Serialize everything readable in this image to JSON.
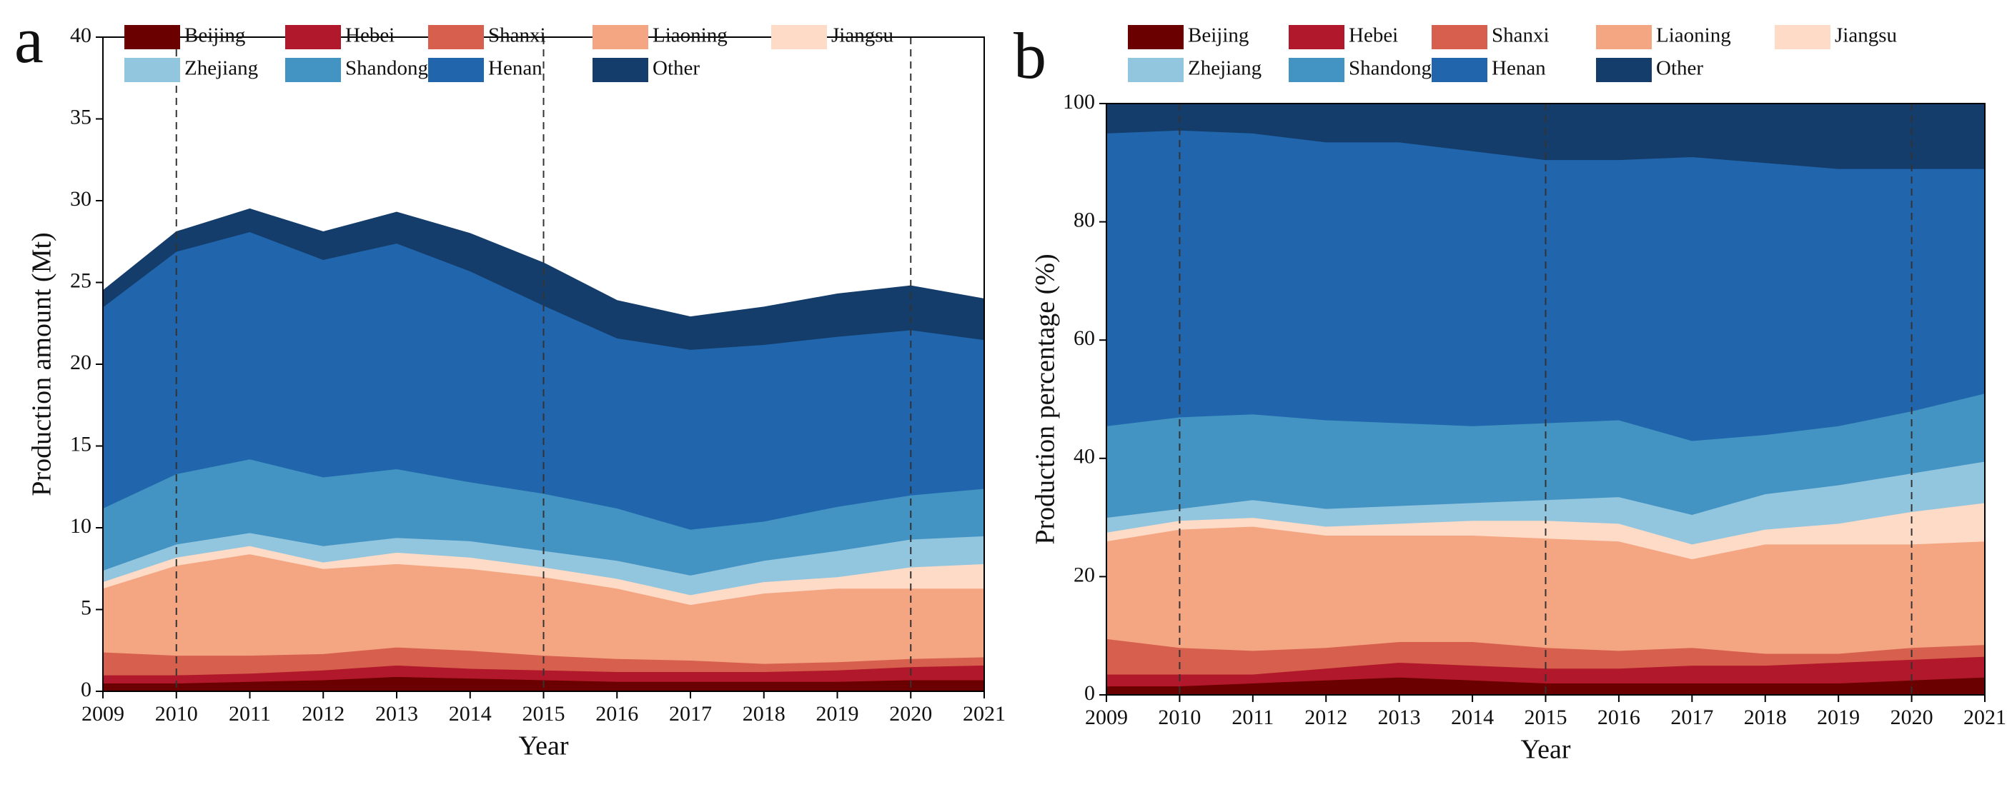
{
  "chart_data": [
    {
      "type": "stacked_area",
      "label": "a",
      "x_label": "Year",
      "y_label": "Production amount (Mt)",
      "x": [
        2009,
        2010,
        2011,
        2012,
        2013,
        2014,
        2015,
        2016,
        2017,
        2018,
        2019,
        2020,
        2021
      ],
      "xlim": [
        2009,
        2021
      ],
      "xticks": [
        2009,
        2010,
        2011,
        2012,
        2013,
        2014,
        2015,
        2016,
        2017,
        2018,
        2019,
        2020,
        2021
      ],
      "ylim": [
        0,
        40
      ],
      "yticks": [
        0,
        5,
        10,
        15,
        20,
        25,
        30,
        35,
        40
      ],
      "reference_lines": [
        2010,
        2015,
        2020
      ],
      "series": [
        {
          "name": "Beijing",
          "color": "#6b0000",
          "values": [
            0.5,
            0.5,
            0.6,
            0.7,
            0.9,
            0.8,
            0.7,
            0.6,
            0.6,
            0.6,
            0.6,
            0.7,
            0.7
          ]
        },
        {
          "name": "Hebei",
          "color": "#b2182b",
          "values": [
            0.5,
            0.5,
            0.5,
            0.6,
            0.7,
            0.6,
            0.6,
            0.6,
            0.6,
            0.6,
            0.7,
            0.8,
            0.9
          ]
        },
        {
          "name": "Shanxi",
          "color": "#d6604d",
          "values": [
            1.4,
            1.2,
            1.1,
            1.0,
            1.1,
            1.1,
            0.9,
            0.8,
            0.7,
            0.5,
            0.5,
            0.5,
            0.5
          ]
        },
        {
          "name": "Liaoning",
          "color": "#f4a582",
          "values": [
            3.9,
            5.5,
            6.2,
            5.2,
            5.1,
            5.0,
            4.8,
            4.3,
            3.4,
            4.3,
            4.5,
            4.3,
            4.2
          ]
        },
        {
          "name": "Jiangsu",
          "color": "#fddbc7",
          "values": [
            0.4,
            0.5,
            0.5,
            0.4,
            0.7,
            0.7,
            0.6,
            0.6,
            0.6,
            0.7,
            0.7,
            1.3,
            1.5
          ]
        },
        {
          "name": "Zhejiang",
          "color": "#92c5de",
          "values": [
            0.7,
            0.8,
            0.8,
            1.0,
            0.9,
            1.0,
            1.0,
            1.1,
            1.2,
            1.3,
            1.6,
            1.7,
            1.7
          ]
        },
        {
          "name": "Shandong",
          "color": "#4393c3",
          "values": [
            3.8,
            4.3,
            4.5,
            4.2,
            4.2,
            3.6,
            3.5,
            3.2,
            2.8,
            2.4,
            2.7,
            2.7,
            2.9
          ]
        },
        {
          "name": "Henan",
          "color": "#2166ac",
          "values": [
            12.3,
            13.6,
            13.9,
            13.3,
            13.8,
            12.9,
            11.5,
            10.4,
            11.0,
            10.8,
            10.4,
            10.1,
            9.1
          ]
        },
        {
          "name": "Other",
          "color": "#143d6b",
          "values": [
            1.0,
            1.2,
            1.4,
            1.7,
            1.9,
            2.3,
            2.6,
            2.3,
            2.0,
            2.3,
            2.6,
            2.7,
            2.5
          ]
        }
      ]
    },
    {
      "type": "stacked_area",
      "label": "b",
      "x_label": "Year",
      "y_label": "Production percentage (%)",
      "x": [
        2009,
        2010,
        2011,
        2012,
        2013,
        2014,
        2015,
        2016,
        2017,
        2018,
        2019,
        2020,
        2021
      ],
      "xlim": [
        2009,
        2021
      ],
      "xticks": [
        2009,
        2010,
        2011,
        2012,
        2013,
        2014,
        2015,
        2016,
        2017,
        2018,
        2019,
        2020,
        2021
      ],
      "ylim": [
        0,
        100
      ],
      "yticks": [
        0,
        20,
        40,
        60,
        80,
        100
      ],
      "reference_lines": [
        2010,
        2015,
        2020
      ],
      "series": [
        {
          "name": "Beijing",
          "color": "#6b0000",
          "values": [
            1.5,
            1.5,
            2,
            2.5,
            3,
            2.5,
            2,
            2,
            2,
            2,
            2,
            2.5,
            3
          ]
        },
        {
          "name": "Hebei",
          "color": "#b2182b",
          "values": [
            2,
            2,
            1.5,
            2,
            2.5,
            2.5,
            2.5,
            2.5,
            3,
            3,
            3.5,
            3.5,
            3.5
          ]
        },
        {
          "name": "Shanxi",
          "color": "#d6604d",
          "values": [
            6,
            4.5,
            4,
            3.5,
            3.5,
            4,
            3.5,
            3,
            3,
            2,
            1.5,
            2,
            2
          ]
        },
        {
          "name": "Liaoning",
          "color": "#f4a582",
          "values": [
            16.5,
            20,
            21,
            19,
            18,
            18,
            18.5,
            18.5,
            15,
            18.5,
            18.5,
            17.5,
            17.5
          ]
        },
        {
          "name": "Jiangsu",
          "color": "#fddbc7",
          "values": [
            1.5,
            1.5,
            1.5,
            1.5,
            2,
            2.5,
            3,
            3,
            2.5,
            2.5,
            3.5,
            5.5,
            6.5
          ]
        },
        {
          "name": "Zhejiang",
          "color": "#92c5de",
          "values": [
            2.5,
            2,
            3,
            3,
            3,
            3,
            3.5,
            4.5,
            5,
            6,
            6.5,
            6.5,
            7
          ]
        },
        {
          "name": "Shandong",
          "color": "#4393c3",
          "values": [
            15.5,
            15.5,
            14.5,
            15,
            14,
            13,
            13,
            13,
            12.5,
            10,
            10,
            10.5,
            11.5
          ]
        },
        {
          "name": "Henan",
          "color": "#2166ac",
          "values": [
            49.5,
            48.5,
            47.5,
            47,
            47.5,
            46.5,
            44.5,
            44,
            48,
            46,
            43.5,
            41,
            38
          ]
        },
        {
          "name": "Other",
          "color": "#143d6b",
          "values": [
            5,
            4.5,
            5,
            6.5,
            6.5,
            8,
            9.5,
            9.5,
            9,
            10,
            11,
            11,
            11
          ]
        }
      ]
    }
  ]
}
